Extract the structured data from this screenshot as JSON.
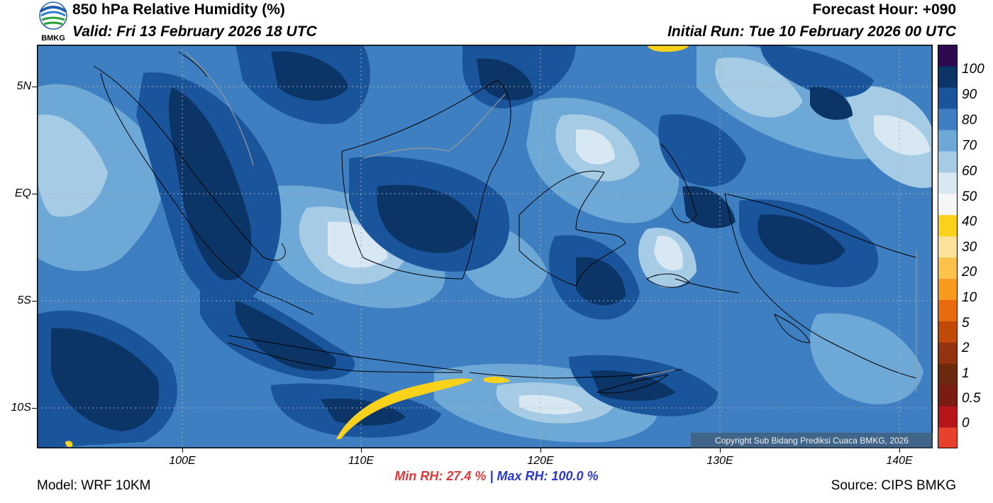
{
  "header": {
    "logo_text": "BMKG",
    "title": "850 hPa Relative Humidity (%)",
    "valid": "Valid: Fri 13 February 2026 18 UTC",
    "forecast_hour": "Forecast Hour: +090",
    "initial_run": "Initial Run: Tue 10 February 2026 00 UTC"
  },
  "map": {
    "lat_labels": [
      "5N",
      "EQ",
      "5S",
      "10S"
    ],
    "lon_labels": [
      "100E",
      "110E",
      "120E",
      "130E",
      "140E"
    ],
    "copyright": "Copyright Sub Bidang Prediksi Cuaca BMKG, 2026"
  },
  "colorbar": {
    "labels": [
      "100",
      "90",
      "80",
      "70",
      "60",
      "50",
      "40",
      "30",
      "20",
      "10",
      "5",
      "2",
      "1",
      "0.5",
      "0"
    ],
    "colors": [
      "#e8412c",
      "#b5151b",
      "#7a1d10",
      "#6e2a0e",
      "#93330f",
      "#c24a07",
      "#e86a0c",
      "#f99a1c",
      "#fdc24a",
      "#fde39a",
      "#fbd21a",
      "#f6f6f6",
      "#d7e8f3",
      "#a5cbe5",
      "#6ea8d7",
      "#3d7fc0",
      "#1a559c",
      "#0b3566",
      "#2e0b4f"
    ]
  },
  "footer": {
    "min_rh": "Min RH:  27.4 %",
    "separator": "|",
    "max_rh": "Max RH: 100.0 %",
    "model": "Model: WRF 10KM",
    "source": "Source: CIPS BMKG"
  }
}
